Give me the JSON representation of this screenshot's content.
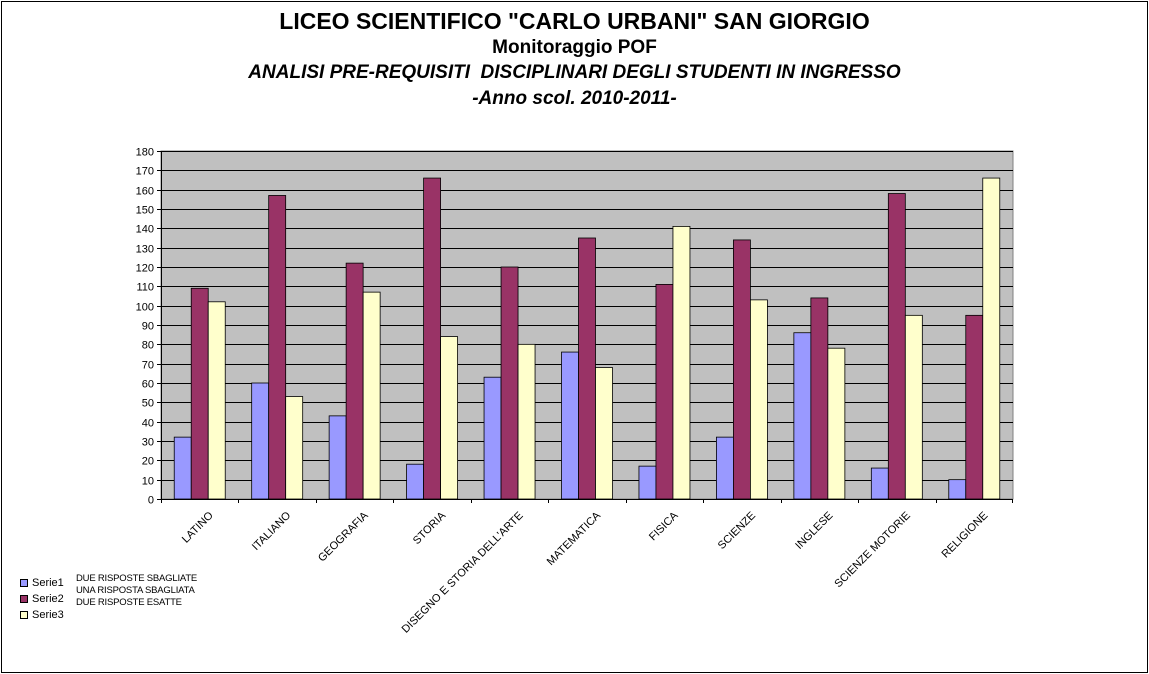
{
  "header": {
    "title": "LICEO SCIENTIFICO \"CARLO URBANI\" SAN GIORGIO",
    "subtitle": "Monitoraggio POF",
    "line3": "ANALISI PRE-REQUISITI  DISCIPLINARI DEGLI STUDENTI IN INGRESSO",
    "line4": "-Anno scol. 2010-2011-"
  },
  "notes": [
    "DUE RISPOSTE SBAGLIATE",
    "UNA RISPOSTA SBAGLIATA",
    "DUE RISPOSTE ESATTE"
  ],
  "colors": {
    "plot_bg": "#c0c0c0",
    "serie1": "#9999ff",
    "serie2": "#993366",
    "serie3": "#ffffcc"
  },
  "chart_data": {
    "type": "bar",
    "categories": [
      "LATINO",
      "ITALIANO",
      "GEOGRAFIA",
      "STORIA",
      "DISEGNO E STORIA DELL'ARTE",
      "MATEMATICA",
      "FISICA",
      "SCIENZE",
      "INGLESE",
      "SCIENZE MOTORIE",
      "RELIGIONE"
    ],
    "series": [
      {
        "name": "Serie1",
        "values": [
          32,
          60,
          43,
          18,
          63,
          76,
          17,
          32,
          86,
          16,
          10
        ]
      },
      {
        "name": "Serie2",
        "values": [
          109,
          157,
          122,
          166,
          120,
          135,
          111,
          134,
          104,
          158,
          95
        ]
      },
      {
        "name": "Serie3",
        "values": [
          102,
          53,
          107,
          84,
          80,
          68,
          141,
          103,
          78,
          95,
          166
        ]
      }
    ],
    "ylim": [
      0,
      180
    ],
    "ytick_step": 10,
    "grid": true,
    "legend_position": "bottom-left"
  }
}
